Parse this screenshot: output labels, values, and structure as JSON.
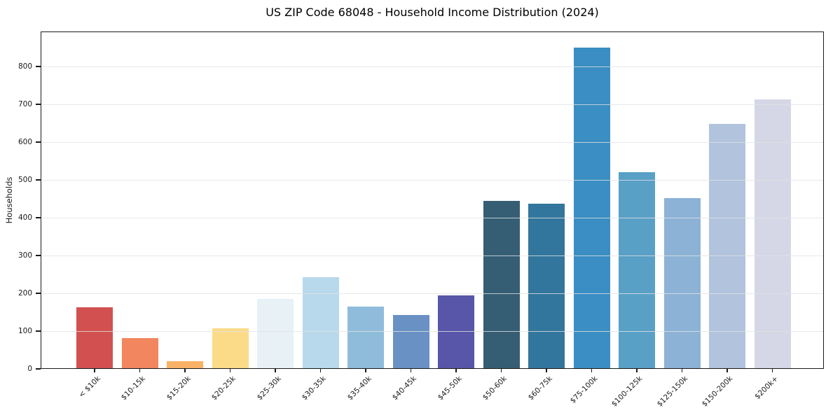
{
  "chart_data": {
    "type": "bar",
    "title": "US ZIP Code 68048 - Household Income Distribution (2024)",
    "xlabel": "",
    "ylabel": "Households",
    "categories": [
      "< $10k",
      "$10-15k",
      "$15-20k",
      "$20-25k",
      "$25-30k",
      "$30-35k",
      "$35-40k",
      "$40-45k",
      "$45-50k",
      "$50-60k",
      "$60-75k",
      "$75-100k",
      "$100-125k",
      "$125-150k",
      "$150-200k",
      "$200k+"
    ],
    "values": [
      163,
      82,
      21,
      107,
      186,
      242,
      164,
      143,
      194,
      445,
      438,
      850,
      520,
      453,
      649,
      713
    ],
    "bar_colors": [
      "#d25150",
      "#f2865f",
      "#fab267",
      "#fbdb88",
      "#e7f1f6",
      "#b8d9ec",
      "#8fbcdb",
      "#6991c4",
      "#5756a9",
      "#355e74",
      "#32769d",
      "#3a8ec3",
      "#58a0c6",
      "#8cb2d6",
      "#b1c3dd",
      "#d5d7e7"
    ],
    "ylim": [
      0,
      893
    ],
    "yticks": [
      0,
      100,
      200,
      300,
      400,
      500,
      600,
      700,
      800
    ],
    "grid": "horizontal-only",
    "gridline_color": "#e2e2e2",
    "spine_color": "#1a1a1a",
    "text_color": "#1a1a1a",
    "background": "#ffffff",
    "legend": "none"
  }
}
